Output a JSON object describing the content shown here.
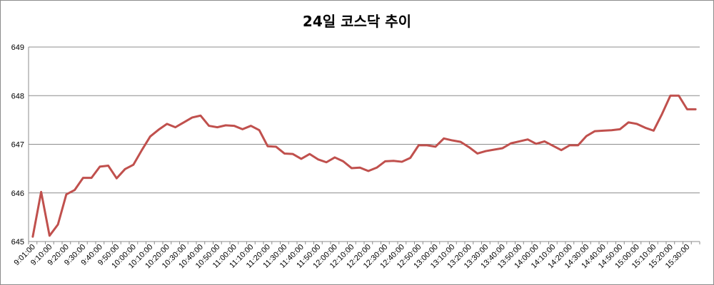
{
  "chart_data": {
    "type": "line",
    "title": "24일 코스닥 추이",
    "xlabel": "",
    "ylabel": "",
    "ylim": [
      645,
      649
    ],
    "yticks": [
      645,
      646,
      647,
      648,
      649
    ],
    "grid": true,
    "legend": "none",
    "colors": {
      "line": "#c0504d",
      "grid": "#8c8c8c",
      "axis": "#8c8c8c"
    },
    "x_tick_labels": [
      "9:01:00",
      "9:10:00",
      "9:20:00",
      "9:30:00",
      "9:40:00",
      "9:50:00",
      "10:00:00",
      "10:10:00",
      "10:20:00",
      "10:30:00",
      "10:40:00",
      "10:50:00",
      "11:00:00",
      "11:10:00",
      "11:20:00",
      "11:30:00",
      "11:40:00",
      "11:50:00",
      "12:00:00",
      "12:10:00",
      "12:20:00",
      "12:30:00",
      "12:40:00",
      "12:50:00",
      "13:00:00",
      "13:10:00",
      "13:20:00",
      "13:30:00",
      "13:40:00",
      "13:50:00",
      "14:00:00",
      "14:10:00",
      "14:20:00",
      "14:30:00",
      "14:40:00",
      "14:50:00",
      "15:00:00",
      "15:10:00",
      "15:20:00",
      "15:30:00"
    ],
    "series": [
      {
        "values": [
          645.1,
          646.02,
          645.12,
          645.35,
          645.97,
          646.06,
          646.31,
          646.31,
          646.54,
          646.56,
          646.3,
          646.49,
          646.58,
          646.88,
          647.16,
          647.3,
          647.42,
          647.35,
          647.45,
          647.55,
          647.59,
          647.38,
          647.35,
          647.39,
          647.38,
          647.31,
          647.38,
          647.29,
          646.96,
          646.95,
          646.81,
          646.8,
          646.7,
          646.8,
          646.69,
          646.63,
          646.73,
          646.65,
          646.51,
          646.52,
          646.45,
          646.52,
          646.65,
          646.66,
          646.64,
          646.72,
          646.98,
          646.98,
          646.95,
          647.12,
          647.08,
          647.05,
          646.94,
          646.81,
          646.86,
          646.89,
          646.92,
          647.02,
          647.06,
          647.1,
          647.01,
          647.06,
          646.97,
          646.88,
          646.98,
          646.98,
          647.17,
          647.27,
          647.28,
          647.29,
          647.31,
          647.45,
          647.42,
          647.34,
          647.28,
          647.62,
          648.0,
          648.0,
          647.72,
          647.72
        ]
      }
    ]
  }
}
